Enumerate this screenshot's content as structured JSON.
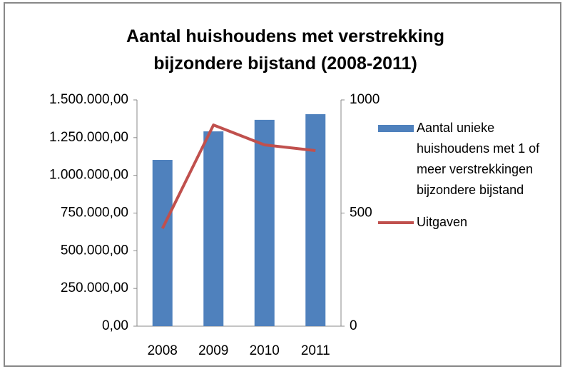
{
  "chart_data": {
    "type": "bar-line",
    "title": "Aantal huishoudens met verstrekking bijzondere bijstand (2008-2011)",
    "categories": [
      "2008",
      "2009",
      "2010",
      "2011"
    ],
    "series": [
      {
        "name": "Aantal unieke huishoudens met 1 of meer verstrekkingen bijzondere bijstand",
        "type": "bar",
        "axis": "y2",
        "color": "#4f81bd",
        "values": [
          735,
          861,
          912,
          937
        ]
      },
      {
        "name": "Uitgaven",
        "type": "line",
        "color": "#c0504d",
        "values": [
          648000,
          1334000,
          1202000,
          1164000
        ]
      }
    ],
    "ylim": [
      0,
      1500000
    ],
    "yticks": [
      {
        "value": 0,
        "label": "0,00"
      },
      {
        "value": 250000,
        "label": "250.000,00"
      },
      {
        "value": 500000,
        "label": "500.000,00"
      },
      {
        "value": 750000,
        "label": "750.000,00"
      },
      {
        "value": 1000000,
        "label": "1.000.000,00"
      },
      {
        "value": 1250000,
        "label": "1.250.000,00"
      },
      {
        "value": 1500000,
        "label": "1.500.000,00"
      }
    ],
    "y2lim": [
      0,
      1000
    ],
    "y2ticks": [
      0,
      500,
      1000
    ],
    "grid": false,
    "legend": "right"
  }
}
